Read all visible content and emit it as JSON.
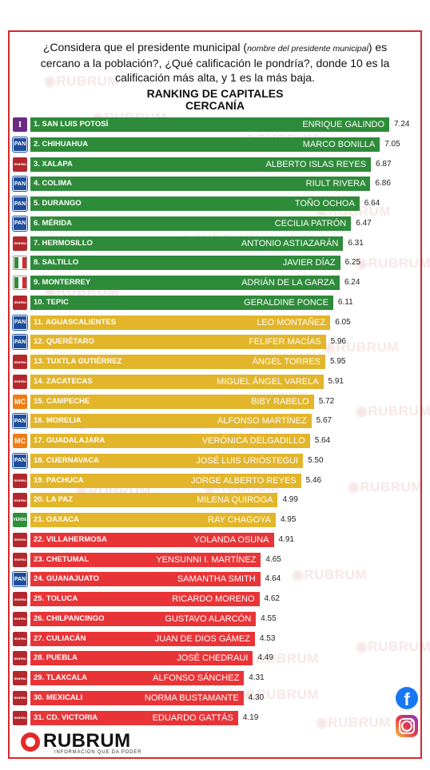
{
  "question": {
    "part1": "¿Considera que el presidente municipal (",
    "italic": "nombre del presidente municipal",
    "part2": ") es cercano a la población?, ¿Qué calificación le pondría?, donde 10 es la calificación más alta, y 1 es la más baja."
  },
  "title": {
    "line1": "RANKING DE CAPITALES",
    "line2": "CERCANÍA"
  },
  "colors": {
    "green": "#2e8b3a",
    "yellow": "#e2b52b",
    "red": "#e83437"
  },
  "chart_data": {
    "type": "bar",
    "orientation": "horizontal",
    "title": "RANKING DE CAPITALES",
    "subtitle": "CERCANÍA",
    "categories": [
      "1. SAN LUIS POTOSÍ",
      "2. CHIHUAHUA",
      "3. XALAPA",
      "4. COLIMA",
      "5. DURANGO",
      "6. MÉRIDA",
      "7. HERMOSILLO",
      "8. SALTILLO",
      "9. MONTERREY",
      "10. TEPIC",
      "11. AGUASCALIENTES",
      "12. QUERÉTARO",
      "13. TUXTLA GUTIÉRREZ",
      "14. ZACATECAS",
      "15. CAMPECHE",
      "16. MORELIA",
      "17. GUADALAJARA",
      "18. CUERNAVACA",
      "19. PACHUCA",
      "20. LA PAZ",
      "21. OAXACA",
      "22. VILLAHERMOSA",
      "23. CHETUMAL",
      "24. GUANAJUATO",
      "25. TOLUCA",
      "26. CHILPANCINGO",
      "27. CULIACÁN",
      "28. PUEBLA",
      "29. TLAXCALA",
      "30. MEXICALI",
      "31. CD. VICTORIA"
    ],
    "mayors": [
      "ENRIQUE GALINDO",
      "MARCO BONILLA",
      "ALBERTO ISLAS REYES",
      "RIULT RIVERA",
      "TOÑO OCHOA",
      "CECILIA PATRÓN",
      "ANTONIO ASTIAZARÁN",
      "JAVIER DÍAZ",
      "ADRIÁN DE LA GARZA",
      "GERALDINE PONCE",
      "LEO MONTAÑEZ",
      "FELIFER MACÍAS",
      "ÁNGEL TORRES",
      "MIGUEL ÁNGEL VARELA",
      "BIBY RABELO",
      "ALFONSO MARTÍNEZ",
      "VERÓNICA DELGADILLO",
      "JOSÉ LUIS URIÓSTEGUI",
      "JORGE ALBERTO REYES",
      "MILENA QUIROGA",
      "RAY CHAGOYA",
      "YOLANDA OSUNA",
      "YENSUNNI I. MARTÍNEZ",
      "SAMANTHA SMITH",
      "RICARDO MORENO",
      "GUSTAVO ALARCÓN",
      "JUAN DE DIOS GÁMEZ",
      "JOSÉ CHEDRAUI",
      "ALFONSO SÁNCHEZ",
      "NORMA BUSTAMANTE",
      "EDUARDO GATTÁS"
    ],
    "values": [
      7.24,
      7.05,
      6.87,
      6.86,
      6.64,
      6.47,
      6.31,
      6.25,
      6.24,
      6.11,
      6.05,
      5.96,
      5.95,
      5.91,
      5.72,
      5.67,
      5.64,
      5.5,
      5.46,
      4.99,
      4.95,
      4.91,
      4.65,
      4.64,
      4.62,
      4.55,
      4.53,
      4.49,
      4.31,
      4.3,
      4.19
    ],
    "value_labels": [
      "7.24",
      "7.05",
      "6.87",
      "6.86",
      "6.64",
      "6.47",
      "6.31",
      "6.25",
      "6.24",
      "6.11",
      "6.05",
      "5.96",
      "5.95",
      "5.91",
      "5.72",
      "5.67",
      "5.64",
      "5.50",
      "5.46",
      "4.99",
      "4.95",
      "4.91",
      "4.65",
      "4.64",
      "4.62",
      "4.55",
      "4.53",
      "4.49",
      "4.31",
      "4.30",
      "4.19"
    ],
    "bar_colors": [
      "green",
      "green",
      "green",
      "green",
      "green",
      "green",
      "green",
      "green",
      "green",
      "green",
      "yellow",
      "yellow",
      "yellow",
      "yellow",
      "yellow",
      "yellow",
      "yellow",
      "yellow",
      "yellow",
      "yellow",
      "yellow",
      "red",
      "red",
      "red",
      "red",
      "red",
      "red",
      "red",
      "red",
      "red",
      "red"
    ],
    "party_icons": [
      "independent-icon",
      "pan-icon",
      "morena-icon",
      "pan-icon",
      "pan-icon",
      "pan-icon",
      "morena-icon",
      "pri-icon",
      "pri-icon",
      "morena-icon",
      "pan-icon",
      "pan-icon",
      "morena-icon",
      "morena-icon",
      "mc-icon",
      "pan-icon",
      "mc-icon",
      "pan-icon",
      "morena-icon",
      "morena-icon",
      "verde-icon",
      "morena-icon",
      "morena-icon",
      "pan-icon",
      "morena-icon",
      "morena-icon",
      "morena-icon",
      "morena-icon",
      "morena-icon",
      "morena-icon",
      "morena-icon"
    ],
    "grid": false
  },
  "icon_text": {
    "independent": "I",
    "pan": "PAN",
    "morena": "morena",
    "mc": "MC",
    "verde": "VERDE"
  },
  "watermark": "RUBRUM",
  "brand": {
    "name": "RUBRUM",
    "tagline": "INFORMACIÓN QUE DA PODER"
  },
  "social": {
    "facebook_glyph": "f"
  }
}
